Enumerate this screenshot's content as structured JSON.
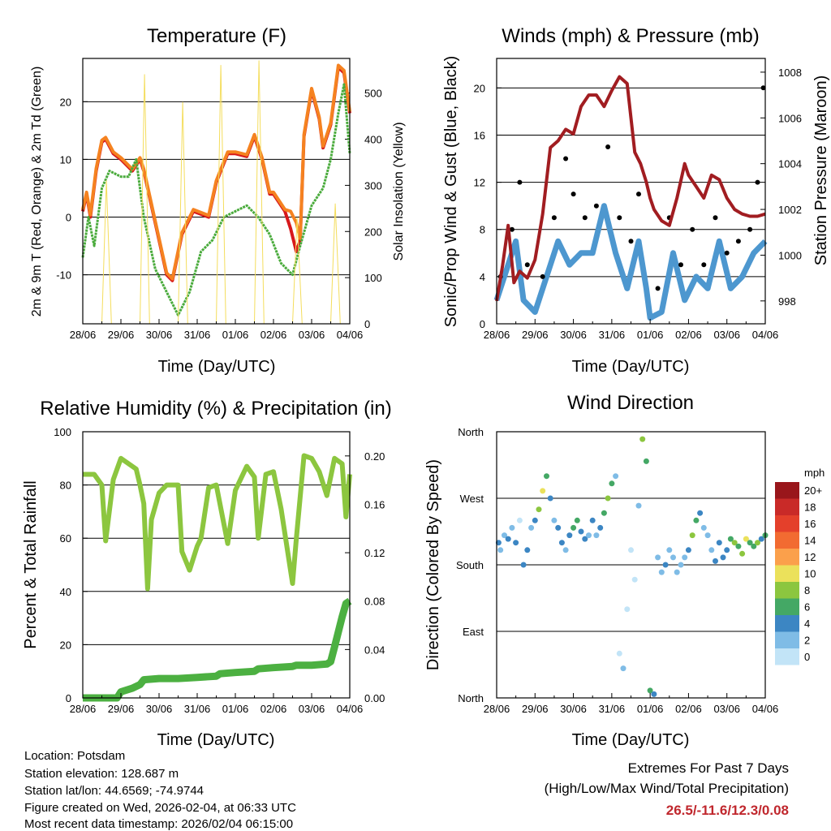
{
  "chart_data": [
    {
      "id": "temperature",
      "type": "line",
      "title": "Temperature (F)",
      "xlabel": "Time (Day/UTC)",
      "ylabel": "2m & 9m T (Red, Orange) & 2m Td (Green)",
      "y2label": "Solar Insolation (Yellow)",
      "categories": [
        "28/06",
        "29/06",
        "30/06",
        "31/06",
        "01/06",
        "02/06",
        "03/06",
        "04/06"
      ],
      "xlim": [
        0,
        7
      ],
      "ylim": [
        -18.5,
        27.5
      ],
      "y2lim": [
        0,
        575
      ],
      "yticks": [
        -10,
        0,
        10,
        20
      ],
      "y2ticks": [
        0,
        100,
        200,
        300,
        400,
        500
      ],
      "series": [
        {
          "name": "2m T",
          "color": "#d7191c",
          "x": [
            0,
            0.1,
            0.2,
            0.35,
            0.5,
            0.6,
            0.8,
            1.0,
            1.3,
            1.5,
            1.6,
            1.8,
            2.0,
            2.2,
            2.35,
            2.6,
            2.9,
            3.3,
            3.5,
            3.8,
            4.0,
            4.3,
            4.5,
            4.7,
            4.9,
            5.0,
            5.3,
            5.45,
            5.6,
            5.7,
            5.8,
            6.0,
            6.2,
            6.3,
            6.5,
            6.7,
            6.85,
            7.0
          ],
          "values": [
            1,
            4,
            0,
            8,
            13,
            13.5,
            11,
            10,
            8,
            10,
            8,
            2,
            -4,
            -10,
            -11,
            -3,
            1,
            0,
            6,
            11,
            11,
            10.5,
            14,
            10,
            4,
            4,
            1,
            -2,
            -6,
            -4,
            14,
            22,
            17,
            12,
            16,
            26,
            25,
            18
          ]
        },
        {
          "name": "9m T",
          "color": "#f58220",
          "x": [
            0,
            0.1,
            0.2,
            0.35,
            0.5,
            0.6,
            0.8,
            1.0,
            1.3,
            1.5,
            1.6,
            1.8,
            2.0,
            2.2,
            2.35,
            2.6,
            2.9,
            3.3,
            3.5,
            3.8,
            4.0,
            4.3,
            4.5,
            4.7,
            4.9,
            5.0,
            5.3,
            5.45,
            5.6,
            5.7,
            5.8,
            6.0,
            6.2,
            6.3,
            6.5,
            6.7,
            6.85,
            7.0
          ],
          "values": [
            1.3,
            4.3,
            0.4,
            8.4,
            13.3,
            13.8,
            11.3,
            10.3,
            8.3,
            10.3,
            8.3,
            2.3,
            -3.7,
            -9.7,
            -10.7,
            -2.7,
            1.3,
            0.3,
            6.3,
            11.3,
            11.3,
            10.8,
            14.3,
            10.3,
            4.3,
            4.3,
            1.3,
            1,
            -1,
            -3.7,
            14.3,
            22.3,
            17.3,
            12.3,
            16.3,
            26.3,
            25.4,
            18.3
          ]
        },
        {
          "name": "2m Td",
          "color": "#4aab3c",
          "x": [
            0,
            0.15,
            0.3,
            0.5,
            0.7,
            1.0,
            1.2,
            1.4,
            1.6,
            1.9,
            2.2,
            2.5,
            2.8,
            3.1,
            3.4,
            3.7,
            4.0,
            4.3,
            4.6,
            4.9,
            5.2,
            5.5,
            5.7,
            6.0,
            6.3,
            6.5,
            6.7,
            6.85,
            7.0
          ],
          "values": [
            -7,
            0,
            -5,
            5,
            8,
            7,
            7,
            10,
            0,
            -9,
            -13,
            -17,
            -13,
            -6,
            -4,
            0,
            1,
            2,
            0,
            -3,
            -8,
            -10,
            -5,
            2,
            5,
            10,
            18,
            23,
            11
          ]
        },
        {
          "name": "Solar Insolation",
          "color": "#f4dd5c",
          "axis": "y2",
          "x": [
            0,
            0.25,
            0.5,
            0.62,
            0.75,
            1.0,
            1.25,
            1.5,
            1.62,
            1.75,
            2.0,
            2.25,
            2.5,
            2.62,
            2.75,
            3.0,
            3.25,
            3.5,
            3.62,
            3.75,
            4.0,
            4.25,
            4.5,
            4.62,
            4.75,
            5.0,
            5.25,
            5.5,
            5.62,
            5.75,
            6.0,
            6.25,
            6.5,
            6.62,
            6.75,
            7.0
          ],
          "values": [
            0,
            0,
            0,
            310,
            0,
            0,
            0,
            0,
            540,
            0,
            0,
            0,
            0,
            480,
            0,
            0,
            0,
            0,
            560,
            0,
            0,
            0,
            0,
            570,
            0,
            0,
            0,
            0,
            230,
            0,
            0,
            0,
            0,
            260,
            0,
            0
          ]
        }
      ]
    },
    {
      "id": "winds",
      "type": "scatter",
      "title": "Winds (mph) & Pressure (mb)",
      "xlabel": "Time (Day/UTC)",
      "ylabel": "Sonic/Prop Wind & Gust (Blue, Black)",
      "y2label": "Station Pressure (Maroon)",
      "categories": [
        "28/06",
        "29/06",
        "30/06",
        "31/06",
        "01/06",
        "02/06",
        "03/06",
        "04/06"
      ],
      "xlim": [
        0,
        7
      ],
      "ylim": [
        0,
        22.5
      ],
      "y2lim": [
        997,
        1008.6
      ],
      "yticks": [
        0,
        4,
        8,
        12,
        16,
        20
      ],
      "y2ticks": [
        998,
        1000,
        1002,
        1004,
        1006,
        1008
      ],
      "series": [
        {
          "name": "Wind",
          "color": "#4d97cf",
          "x": [
            0,
            0.3,
            0.5,
            0.7,
            1.0,
            1.3,
            1.6,
            1.9,
            2.2,
            2.5,
            2.8,
            3.1,
            3.4,
            3.7,
            3.9,
            4.0,
            4.3,
            4.6,
            4.9,
            5.2,
            5.5,
            5.8,
            6.1,
            6.4,
            6.7,
            7.0
          ],
          "values": [
            2,
            5,
            7,
            2,
            1,
            4,
            7,
            5,
            6,
            6,
            10,
            6,
            3,
            7,
            3,
            0.5,
            1,
            6,
            2,
            4,
            3,
            7,
            3,
            4,
            6,
            7
          ]
        },
        {
          "name": "Gust",
          "color": "#000000",
          "x": [
            0.1,
            0.4,
            0.6,
            0.8,
            1.2,
            1.5,
            1.8,
            2.0,
            2.3,
            2.6,
            2.9,
            3.2,
            3.5,
            3.7,
            4.2,
            4.5,
            4.8,
            5.1,
            5.4,
            5.7,
            6.0,
            6.3,
            6.6,
            6.8,
            6.95
          ],
          "values": [
            4,
            8,
            12,
            5,
            4,
            9,
            14,
            11,
            9,
            10,
            15,
            9,
            7,
            11,
            3,
            9,
            5,
            8,
            5,
            9,
            6,
            7,
            8,
            12,
            20
          ]
        },
        {
          "name": "Pressure",
          "color": "#a11d21",
          "axis": "y2",
          "x": [
            0,
            0.15,
            0.3,
            0.45,
            0.6,
            0.8,
            1.0,
            1.2,
            1.4,
            1.6,
            1.8,
            2.0,
            2.2,
            2.4,
            2.6,
            2.8,
            3.0,
            3.2,
            3.4,
            3.6,
            3.75,
            3.9,
            4.0,
            4.1,
            4.3,
            4.5,
            4.7,
            4.9,
            5.0,
            5.2,
            5.4,
            5.6,
            5.8,
            6.0,
            6.2,
            6.4,
            6.6,
            6.8,
            7.0
          ],
          "values": [
            998,
            999.5,
            1001.3,
            998.8,
            999.3,
            999,
            999.8,
            1001.8,
            1004.7,
            1005,
            1005.5,
            1005.3,
            1006.5,
            1007,
            1007,
            1006.5,
            1007.2,
            1007.8,
            1007.5,
            1004.5,
            1004,
            1003.2,
            1002.5,
            1002,
            1001.5,
            1001.3,
            1002.5,
            1004,
            1003.5,
            1003,
            1002.5,
            1003.5,
            1003.3,
            1002.5,
            1002,
            1001.8,
            1001.7,
            1001.7,
            1001.8
          ]
        }
      ]
    },
    {
      "id": "humidity",
      "type": "line",
      "title": "Relative Humidity (%) & Precipitation (in)",
      "xlabel": "Time (Day/UTC)",
      "ylabel": "Percent & Total Rainfall",
      "categories": [
        "28/06",
        "29/06",
        "30/06",
        "31/06",
        "01/06",
        "02/06",
        "03/06",
        "04/06"
      ],
      "xlim": [
        0,
        7
      ],
      "ylim": [
        0,
        100
      ],
      "y2lim": [
        0,
        0.22
      ],
      "yticks": [
        0,
        20,
        40,
        60,
        80,
        100
      ],
      "y2ticks": [
        "0.00",
        "0.04",
        "0.08",
        "0.12",
        "0.16",
        "0.20"
      ],
      "series": [
        {
          "name": "Relative Humidity",
          "color": "#8cc63f",
          "x": [
            0,
            0.3,
            0.5,
            0.6,
            0.8,
            1.0,
            1.4,
            1.5,
            1.6,
            1.7,
            1.8,
            2.0,
            2.2,
            2.5,
            2.6,
            2.8,
            3.0,
            3.1,
            3.3,
            3.5,
            3.8,
            4.0,
            4.3,
            4.5,
            4.6,
            4.8,
            5.0,
            5.2,
            5.5,
            5.6,
            5.8,
            6.0,
            6.2,
            6.4,
            6.6,
            6.8,
            6.9,
            7.0
          ],
          "values": [
            84,
            84,
            80,
            59,
            82,
            90,
            86,
            80,
            73,
            41,
            67,
            77,
            80,
            80,
            55,
            48,
            57,
            60,
            79,
            80,
            58,
            78,
            87,
            83,
            60,
            84,
            85,
            71,
            43,
            60,
            91,
            90,
            85,
            76,
            90,
            88,
            68,
            84
          ]
        },
        {
          "name": "Total Precipitation",
          "color": "#4cb041",
          "axis": "y2",
          "x": [
            0,
            0.9,
            1.0,
            1.3,
            1.5,
            1.6,
            2.0,
            2.5,
            3.0,
            3.5,
            3.6,
            4.0,
            4.5,
            4.6,
            5.0,
            5.5,
            5.6,
            6.0,
            6.4,
            6.5,
            6.6,
            6.8,
            6.9,
            7.0
          ],
          "values": [
            0,
            0,
            0.005,
            0.008,
            0.011,
            0.015,
            0.016,
            0.016,
            0.017,
            0.018,
            0.02,
            0.021,
            0.022,
            0.024,
            0.025,
            0.026,
            0.027,
            0.027,
            0.028,
            0.03,
            0.042,
            0.067,
            0.078,
            0.08
          ]
        }
      ]
    },
    {
      "id": "direction",
      "type": "scatter",
      "title": "Wind Direction",
      "xlabel": "Time (Day/UTC)",
      "ylabel": "Direction (Colored By Speed)",
      "categories": [
        "28/06",
        "29/06",
        "30/06",
        "31/06",
        "01/06",
        "02/06",
        "03/06",
        "04/06"
      ],
      "xlim": [
        0,
        7
      ],
      "ylim": [
        0,
        360
      ],
      "direction_labels": [
        "North",
        "East",
        "South",
        "West",
        "North"
      ],
      "legend_title": "mph",
      "legend_levels": [
        "20+",
        "18",
        "16",
        "14",
        "12",
        "10",
        "8",
        "6",
        "4",
        "2",
        "0"
      ],
      "legend_colors": [
        "#99161b",
        "#c92a28",
        "#e4402b",
        "#f26b31",
        "#fba04b",
        "#ebe15b",
        "#8cc63f",
        "#44a865",
        "#3c86c3",
        "#7fbce6",
        "#c2e4f7"
      ],
      "series": [
        {
          "name": "Direction",
          "x": [
            0.05,
            0.1,
            0.2,
            0.3,
            0.4,
            0.5,
            0.6,
            0.7,
            0.8,
            0.9,
            1.0,
            1.1,
            1.2,
            1.3,
            1.4,
            1.5,
            1.6,
            1.7,
            1.8,
            1.9,
            2.0,
            2.1,
            2.2,
            2.3,
            2.4,
            2.5,
            2.6,
            2.7,
            2.8,
            2.9,
            3.0,
            3.1,
            3.2,
            3.3,
            3.4,
            3.5,
            3.6,
            3.7,
            3.8,
            3.9,
            4.0,
            4.1,
            4.2,
            4.3,
            4.4,
            4.5,
            4.6,
            4.7,
            4.8,
            4.9,
            5.0,
            5.1,
            5.2,
            5.3,
            5.4,
            5.5,
            5.6,
            5.7,
            5.8,
            5.9,
            6.0,
            6.1,
            6.2,
            6.3,
            6.4,
            6.5,
            6.6,
            6.7,
            6.8,
            6.9,
            7.0
          ],
          "values": [
            210,
            200,
            220,
            215,
            230,
            210,
            240,
            180,
            200,
            230,
            240,
            255,
            280,
            300,
            270,
            240,
            230,
            210,
            200,
            220,
            230,
            240,
            225,
            215,
            220,
            240,
            220,
            230,
            250,
            270,
            290,
            300,
            60,
            40,
            120,
            200,
            160,
            260,
            350,
            320,
            10,
            5,
            190,
            170,
            180,
            200,
            190,
            170,
            180,
            190,
            200,
            220,
            240,
            250,
            230,
            220,
            200,
            185,
            210,
            190,
            200,
            215,
            210,
            205,
            195,
            215,
            210,
            205,
            210,
            215,
            220
          ],
          "speeds": [
            4,
            3,
            2,
            4,
            2,
            5,
            1,
            4,
            4,
            3,
            5,
            8,
            10,
            6,
            4,
            3,
            4,
            4,
            3,
            4,
            6,
            6,
            4,
            4,
            3,
            4,
            3,
            4,
            6,
            8,
            6,
            2,
            1,
            2,
            1,
            1,
            1,
            3,
            8,
            6,
            6,
            4,
            3,
            2,
            4,
            3,
            2,
            3,
            3,
            3,
            4,
            8,
            6,
            4,
            3,
            3,
            3,
            4,
            4,
            5,
            4,
            7,
            8,
            6,
            8,
            10,
            7,
            6,
            8,
            4,
            6
          ]
        }
      ]
    }
  ],
  "info": {
    "location": "Location: Potsdam",
    "elevation": "Station elevation: 128.687 m",
    "latlon": "Station lat/lon: 44.6569; -74.9744",
    "created": "Figure created on Wed, 2026-02-04, at 06:33 UTC",
    "recent": "Most recent data timestamp: 2026/02/04 06:15:00"
  },
  "extremes": {
    "line1": "Extremes For Past 7 Days",
    "line2": "(High/Low/Max Wind/Total Precipitation)",
    "value": "26.5/-11.6/12.3/0.08"
  }
}
